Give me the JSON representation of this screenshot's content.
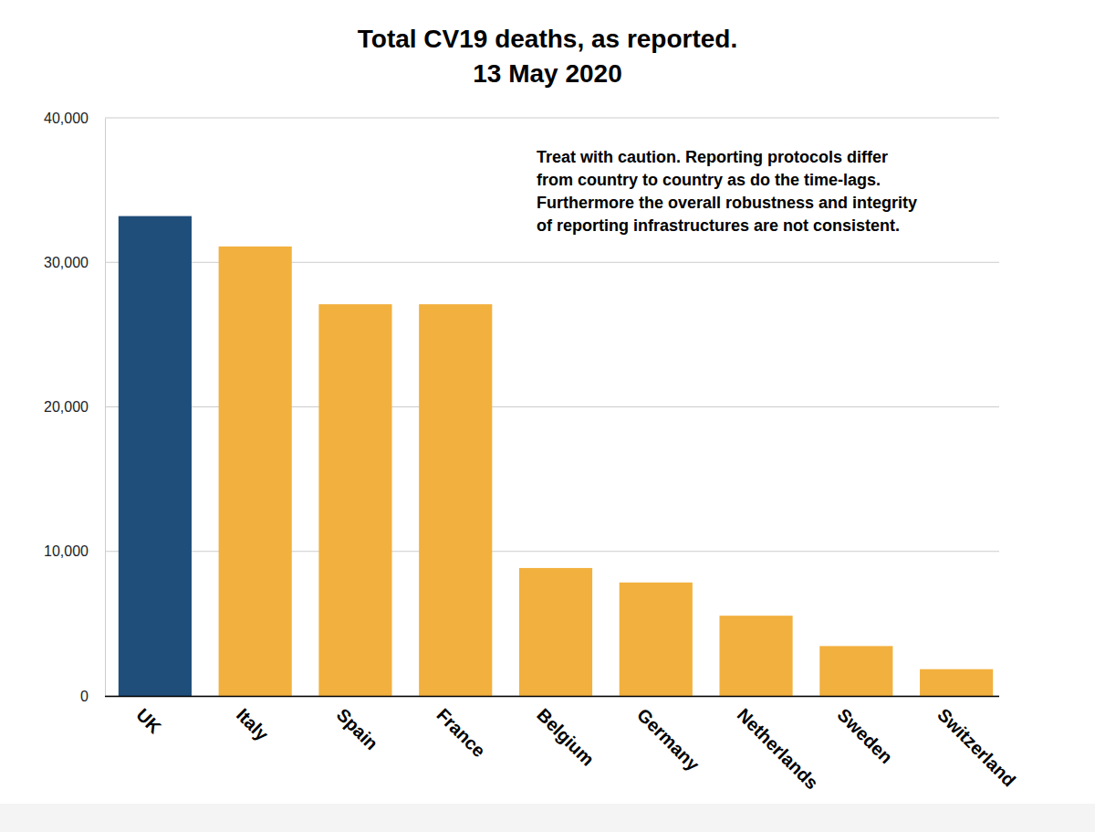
{
  "chart_data": {
    "type": "bar",
    "title": "Total CV19 deaths, as reported.",
    "subtitle": "13 May 2020",
    "annotation": [
      "Treat with caution. Reporting protocols differ",
      "from country to country as do the time-lags.",
      "Furthermore the overall robustness and integrity",
      "of reporting infrastructures are not consistent."
    ],
    "categories": [
      "UK",
      "Italy",
      "Spain",
      "France",
      "Belgium",
      "Germany",
      "Netherlands",
      "Sweden",
      "Switzerland"
    ],
    "values": [
      33200,
      31100,
      27100,
      27100,
      8850,
      7850,
      5550,
      3450,
      1850
    ],
    "colors": [
      "#1f4e7a",
      "#f2b03e",
      "#f2b03e",
      "#f2b03e",
      "#f2b03e",
      "#f2b03e",
      "#f2b03e",
      "#f2b03e",
      "#f2b03e"
    ],
    "ylim": [
      0,
      40000
    ],
    "yticks": [
      0,
      {
        "value": 10000,
        "label": "10,000"
      },
      {
        "value": 20000,
        "label": "20,000"
      },
      {
        "value": 30000,
        "label": "30,000"
      },
      {
        "value": 40000,
        "label": "40,000"
      }
    ],
    "grid": true
  }
}
